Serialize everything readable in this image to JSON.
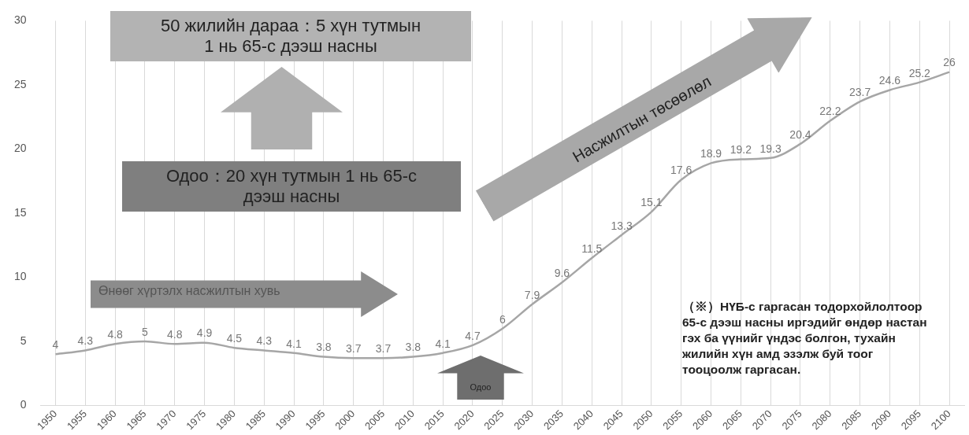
{
  "chart_data": {
    "type": "line",
    "categories": [
      "1950",
      "1955",
      "1960",
      "1965",
      "1970",
      "1975",
      "1980",
      "1985",
      "1990",
      "1995",
      "2000",
      "2005",
      "2010",
      "2015",
      "2020",
      "2025",
      "2030",
      "2035",
      "2040",
      "2045",
      "2050",
      "2055",
      "2060",
      "2065",
      "2070",
      "2075",
      "2080",
      "2085",
      "2090",
      "2095",
      "2100"
    ],
    "series": [
      {
        "color": "#a6a6a6",
        "values": [
          4,
          4.3,
          4.8,
          5,
          4.8,
          4.9,
          4.5,
          4.3,
          4.1,
          3.8,
          3.7,
          3.7,
          3.8,
          4.1,
          4.7,
          6,
          7.9,
          9.6,
          11.5,
          13.3,
          15.1,
          17.6,
          18.9,
          19.2,
          19.3,
          20.4,
          22.2,
          23.7,
          24.6,
          25.2,
          26
        ]
      }
    ],
    "ylim": [
      0,
      30
    ],
    "yticks": [
      0,
      5,
      10,
      15,
      20,
      25,
      30
    ],
    "grid": "x",
    "legend": false,
    "marker": "none",
    "line_style": "solid",
    "data_labels": true,
    "annotations": [
      "50 жилийн дараа：5 хүн тутмын 1 нь 65-с дээш насны",
      "Одоо：20 хүн тутмын 1 нь 65-с дээш насны",
      "Өнөөг хүртэлх насжилтын хувь",
      "Насжилтын төсөөлөл",
      "Одоо",
      "（※）НҮБ-с гаргасан тодорхойлолтоор 65-с дээш насны иргэдийг өндөр настан гэх ба үүнийг үндэс болгон, тухайн жилийн хүн амд эзэлж буй тоог тооцоолж гаргасан."
    ]
  }
}
